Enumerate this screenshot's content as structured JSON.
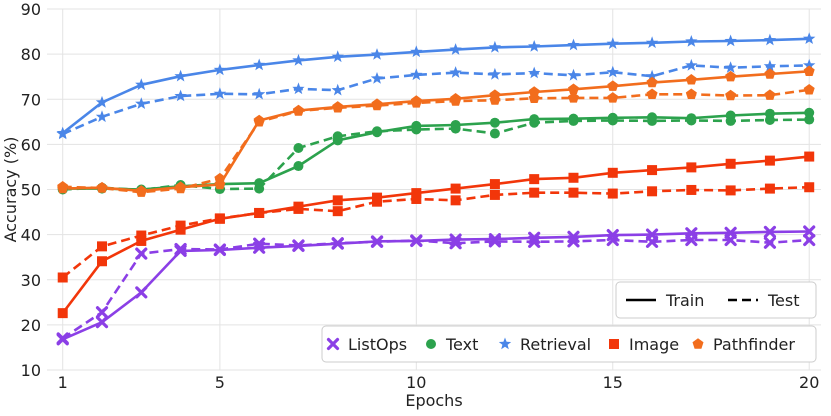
{
  "chart_data": {
    "type": "line",
    "xlabel": "Epochs",
    "ylabel": "Accuracy (%)",
    "xlim": [
      0.6,
      20.3
    ],
    "ylim": [
      10,
      90
    ],
    "x_ticks": [
      1,
      5,
      10,
      15,
      20
    ],
    "y_ticks": [
      10,
      20,
      30,
      40,
      50,
      60,
      70,
      80,
      90
    ],
    "grid": true,
    "x": [
      1,
      2,
      3,
      4,
      5,
      6,
      7,
      8,
      9,
      10,
      11,
      12,
      13,
      14,
      15,
      16,
      17,
      18,
      19,
      20
    ],
    "series": [
      {
        "name": "ListOps",
        "split": "Train",
        "color": "#8b3fe6",
        "marker": "x",
        "values": [
          16.8,
          20.6,
          27.2,
          36.4,
          36.6,
          37.1,
          37.5,
          38.0,
          38.5,
          38.6,
          38.9,
          39.0,
          39.3,
          39.5,
          39.9,
          40.0,
          40.3,
          40.4,
          40.6,
          40.7
        ]
      },
      {
        "name": "ListOps",
        "split": "Test",
        "color": "#8b3fe6",
        "marker": "x",
        "values": [
          17.0,
          22.8,
          35.8,
          36.8,
          36.7,
          38.0,
          37.6,
          38.1,
          38.4,
          38.7,
          38.1,
          38.5,
          38.4,
          38.5,
          38.8,
          38.4,
          38.8,
          38.8,
          38.2,
          38.8
        ]
      },
      {
        "name": "Text",
        "split": "Train",
        "color": "#2ca24d",
        "marker": "circle",
        "values": [
          50.2,
          50.2,
          50.0,
          50.7,
          51.2,
          51.4,
          55.2,
          60.9,
          62.7,
          64.1,
          64.3,
          64.8,
          65.6,
          65.7,
          65.9,
          66.0,
          65.8,
          66.4,
          66.8,
          67.0
        ]
      },
      {
        "name": "Text",
        "split": "Test",
        "color": "#2ca24d",
        "marker": "circle",
        "values": [
          50.0,
          50.4,
          49.9,
          51.0,
          50.1,
          50.2,
          59.2,
          61.8,
          62.9,
          63.3,
          63.5,
          62.4,
          64.8,
          65.2,
          65.3,
          65.2,
          65.3,
          65.2,
          65.4,
          65.5
        ]
      },
      {
        "name": "Retrieval",
        "split": "Train",
        "color": "#4a86e8",
        "marker": "star",
        "values": [
          62.5,
          69.3,
          73.2,
          75.1,
          76.5,
          77.6,
          78.6,
          79.4,
          79.9,
          80.5,
          81.0,
          81.5,
          81.7,
          82.0,
          82.3,
          82.5,
          82.8,
          82.9,
          83.1,
          83.4
        ]
      },
      {
        "name": "Retrieval",
        "split": "Test",
        "color": "#4a86e8",
        "marker": "star",
        "values": [
          62.3,
          66.1,
          69.0,
          70.7,
          71.2,
          71.1,
          72.3,
          72.0,
          74.6,
          75.4,
          75.9,
          75.5,
          75.8,
          75.3,
          76.0,
          75.1,
          77.5,
          77.0,
          77.3,
          77.5
        ]
      },
      {
        "name": "Image",
        "split": "Train",
        "color": "#f2360a",
        "marker": "square",
        "values": [
          22.6,
          34.1,
          38.6,
          41.1,
          43.5,
          44.8,
          46.2,
          47.6,
          48.2,
          49.2,
          50.2,
          51.2,
          52.3,
          52.6,
          53.7,
          54.3,
          54.9,
          55.7,
          56.4,
          57.3
        ]
      },
      {
        "name": "Image",
        "split": "Test",
        "color": "#f2360a",
        "marker": "square",
        "values": [
          30.5,
          37.4,
          39.8,
          42.0,
          43.6,
          44.8,
          45.7,
          45.2,
          47.3,
          47.9,
          47.6,
          48.8,
          49.3,
          49.3,
          49.1,
          49.6,
          49.9,
          49.8,
          50.2,
          50.5
        ]
      },
      {
        "name": "Pathfinder",
        "split": "Train",
        "color": "#f26d1d",
        "marker": "pentagon",
        "values": [
          50.2,
          50.4,
          49.7,
          50.5,
          51.1,
          65.3,
          67.5,
          68.3,
          68.9,
          69.6,
          70.1,
          70.9,
          71.6,
          72.2,
          72.9,
          73.7,
          74.3,
          75.0,
          75.6,
          76.2
        ]
      },
      {
        "name": "Pathfinder",
        "split": "Test",
        "color": "#f26d1d",
        "marker": "pentagon",
        "values": [
          50.6,
          50.3,
          49.4,
          50.2,
          52.4,
          65.0,
          67.4,
          68.1,
          68.6,
          69.2,
          69.6,
          69.8,
          70.2,
          70.3,
          70.3,
          71.1,
          71.1,
          70.8,
          70.9,
          72.1
        ]
      }
    ],
    "legend_style": {
      "location": "bottom-right",
      "entries": [
        {
          "label": "Train",
          "dash": "solid"
        },
        {
          "label": "Test",
          "dash": "dashed"
        }
      ]
    },
    "legend_tasks": {
      "location": "bottom-right",
      "entries": [
        {
          "label": "ListOps",
          "color": "#8b3fe6",
          "marker": "x"
        },
        {
          "label": "Text",
          "color": "#2ca24d",
          "marker": "circle"
        },
        {
          "label": "Retrieval",
          "color": "#4a86e8",
          "marker": "star"
        },
        {
          "label": "Image",
          "color": "#f2360a",
          "marker": "square"
        },
        {
          "label": "Pathfinder",
          "color": "#f26d1d",
          "marker": "pentagon"
        }
      ]
    }
  }
}
